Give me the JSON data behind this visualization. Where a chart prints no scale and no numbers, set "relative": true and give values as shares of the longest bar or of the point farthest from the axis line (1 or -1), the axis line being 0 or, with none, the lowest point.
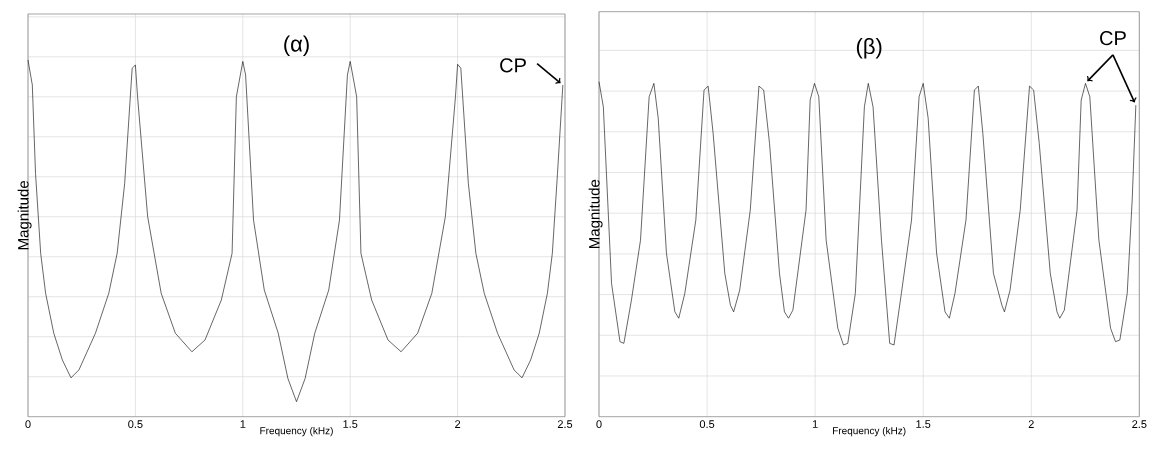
{
  "chart_data": [
    {
      "type": "line",
      "relative": true,
      "xlabel": "Frequency (kHz)",
      "ylabel": "Magnitude",
      "xlim": [
        0,
        2.5
      ],
      "xticks": [
        0,
        0.5,
        1,
        1.5,
        2,
        2.5
      ],
      "grid": true,
      "tick_labels": "x",
      "annotations": [
        "(α)",
        {
          "text": "CP",
          "x": 2.49,
          "y": 0.93
        }
      ],
      "series": [
        {
          "color": "#000000",
          "x": [
            0,
            0.02,
            0.035,
            0.059,
            0.082,
            0.12,
            0.16,
            0.2,
            0.237,
            0.314,
            0.376,
            0.415,
            0.45,
            0.485,
            0.5,
            0.51,
            0.557,
            0.62,
            0.686,
            0.763,
            0.824,
            0.9,
            0.95,
            0.97,
            1.0,
            1.013,
            1.05,
            1.1,
            1.165,
            1.21,
            1.25,
            1.29,
            1.335,
            1.4,
            1.45,
            1.487,
            1.5,
            1.53,
            1.55,
            1.6,
            1.676,
            1.737,
            1.814,
            1.88,
            1.943,
            1.99,
            2.0,
            2.015,
            2.05,
            2.085,
            2.124,
            2.186,
            2.263,
            2.3,
            2.34,
            2.38,
            2.418,
            2.441,
            2.465,
            2.49
          ],
          "values": [
            1.0,
            0.93,
            0.682,
            0.458,
            0.346,
            0.234,
            0.159,
            0.109,
            0.131,
            0.234,
            0.346,
            0.458,
            0.654,
            0.977,
            0.986,
            0.897,
            0.561,
            0.346,
            0.234,
            0.182,
            0.215,
            0.327,
            0.458,
            0.897,
            0.996,
            0.958,
            0.551,
            0.355,
            0.234,
            0.107,
            0.042,
            0.107,
            0.234,
            0.355,
            0.551,
            0.958,
            0.996,
            0.897,
            0.458,
            0.327,
            0.215,
            0.182,
            0.234,
            0.346,
            0.561,
            0.897,
            0.988,
            0.977,
            0.654,
            0.458,
            0.346,
            0.234,
            0.131,
            0.109,
            0.159,
            0.234,
            0.346,
            0.458,
            0.682,
            0.93
          ]
        }
      ]
    },
    {
      "type": "line",
      "relative": true,
      "xlabel": "Frequency (kHz)",
      "ylabel": "Magnitude",
      "xlim": [
        0,
        2.5
      ],
      "xticks": [
        0,
        0.5,
        1,
        1.5,
        2,
        2.5
      ],
      "grid": true,
      "tick_labels": "x",
      "annotations": [
        "(β)",
        {
          "text": "CP",
          "x": 2.25,
          "y": 0.995
        }
      ],
      "series": [
        {
          "color": "#000000",
          "x": [
            0,
            0.02,
            0.058,
            0.097,
            0.115,
            0.15,
            0.192,
            0.232,
            0.254,
            0.274,
            0.312,
            0.351,
            0.369,
            0.397,
            0.448,
            0.486,
            0.505,
            0.528,
            0.582,
            0.608,
            0.623,
            0.651,
            0.7,
            0.74,
            0.762,
            0.789,
            0.835,
            0.858,
            0.877,
            0.897,
            0.958,
            0.977,
            0.997,
            1.017,
            1.051,
            1.105,
            1.131,
            1.151,
            1.186,
            1.228,
            1.246,
            1.268,
            1.307,
            1.345,
            1.365,
            1.399,
            1.446,
            1.481,
            1.5,
            1.523,
            1.562,
            1.601,
            1.621,
            1.647,
            1.698,
            1.737,
            1.755,
            1.776,
            1.825,
            1.864,
            1.876,
            1.902,
            1.949,
            1.992,
            2.011,
            2.037,
            2.088,
            2.119,
            2.132,
            2.153,
            2.212,
            2.231,
            2.251,
            2.271,
            2.313,
            2.367,
            2.39,
            2.41,
            2.444,
            2.467,
            2.484
          ],
          "values": [
            1.0,
            0.925,
            0.398,
            0.224,
            0.219,
            0.348,
            0.527,
            0.955,
            0.995,
            0.891,
            0.488,
            0.313,
            0.294,
            0.368,
            0.587,
            0.975,
            0.987,
            0.846,
            0.428,
            0.333,
            0.313,
            0.378,
            0.617,
            0.987,
            0.975,
            0.816,
            0.428,
            0.313,
            0.294,
            0.318,
            0.617,
            0.945,
            0.995,
            0.955,
            0.527,
            0.264,
            0.214,
            0.219,
            0.368,
            0.925,
            0.995,
            0.925,
            0.527,
            0.219,
            0.214,
            0.368,
            0.587,
            0.955,
            0.995,
            0.891,
            0.488,
            0.313,
            0.294,
            0.368,
            0.587,
            0.975,
            0.987,
            0.846,
            0.428,
            0.333,
            0.313,
            0.378,
            0.617,
            0.987,
            0.975,
            0.816,
            0.428,
            0.313,
            0.294,
            0.318,
            0.617,
            0.945,
            0.995,
            0.955,
            0.527,
            0.264,
            0.224,
            0.229,
            0.368,
            0.647,
            0.93
          ]
        }
      ]
    }
  ]
}
